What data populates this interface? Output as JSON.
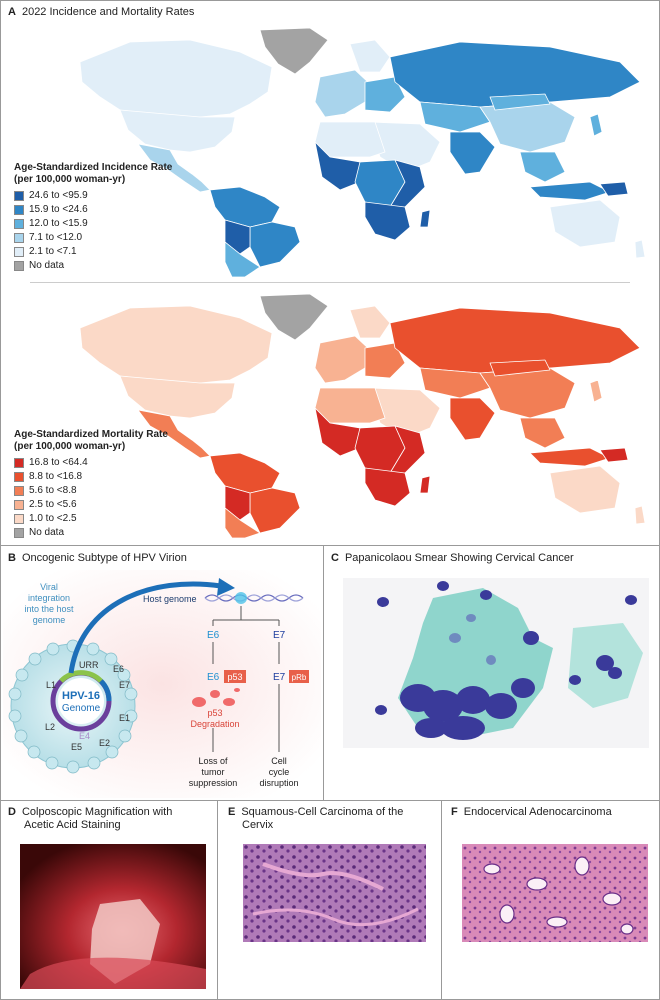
{
  "panel_a": {
    "letter": "A",
    "title": "2022 Incidence and Mortality Rates",
    "incidence_legend": {
      "title_line1": "Age-Standardized Incidence Rate",
      "title_line2": "(per 100,000 woman-yr)",
      "items": [
        {
          "label": "24.6 to <95.9",
          "color": "#1f5ea8"
        },
        {
          "label": "15.9 to <24.6",
          "color": "#2f86c6"
        },
        {
          "label": "12.0 to <15.9",
          "color": "#5fb0dd"
        },
        {
          "label": "7.1 to <12.0",
          "color": "#a9d4ec"
        },
        {
          "label": "2.1 to <7.1",
          "color": "#e1eef8"
        },
        {
          "label": "No data",
          "color": "#a3a3a3"
        }
      ]
    },
    "mortality_legend": {
      "title_line1": "Age-Standardized Mortality Rate",
      "title_line2": "(per 100,000 woman-yr)",
      "items": [
        {
          "label": "16.8 to <64.4",
          "color": "#d42a24"
        },
        {
          "label": "8.8 to <16.8",
          "color": "#e9502e"
        },
        {
          "label": "5.6 to <8.8",
          "color": "#f27e55"
        },
        {
          "label": "2.5 to <5.6",
          "color": "#f8b292"
        },
        {
          "label": "1.0 to <2.5",
          "color": "#fbd9c7"
        },
        {
          "label": "No data",
          "color": "#a3a3a3"
        }
      ]
    }
  },
  "panel_b": {
    "letter": "B",
    "title": "Oncogenic Subtype of HPV Virion",
    "viral_integration": [
      "Viral",
      "integration",
      "into the host",
      "genome"
    ],
    "host_genome": "Host genome",
    "virus_label": "HPV-16",
    "genome_label": "Genome",
    "genes": [
      "URR",
      "E6",
      "E7",
      "E1",
      "E2",
      "E4",
      "E5",
      "L2",
      "L1"
    ],
    "e6": "E6",
    "e7": "E7",
    "p53": "p53",
    "prb": "pRb",
    "p53_degradation": [
      "p53",
      "Degradation"
    ],
    "loss": [
      "Loss of",
      "tumor",
      "suppression"
    ],
    "cell_cycle": [
      "Cell",
      "cycle",
      "disruption"
    ]
  },
  "panel_c": {
    "letter": "C",
    "title": "Papanicolaou Smear Showing Cervical Cancer"
  },
  "panel_d": {
    "letter": "D",
    "title_line1": "Colposcopic Magnification with",
    "title_line2": "Acetic Acid Staining"
  },
  "panel_e": {
    "letter": "E",
    "title_line1": "Squamous-Cell Carcinoma of the",
    "title_line2": "Cervix"
  },
  "panel_f": {
    "letter": "F",
    "title": "Endocervical Adenocarcinoma"
  }
}
